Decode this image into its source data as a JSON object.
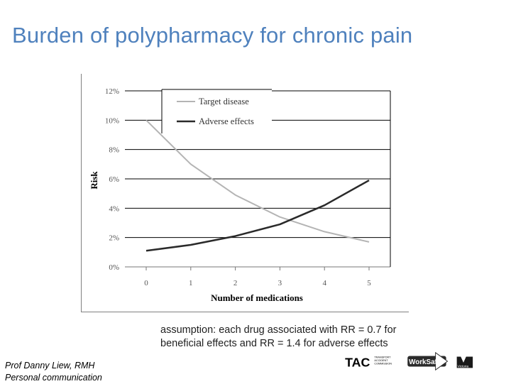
{
  "slide": {
    "title": "Burden of polypharmacy for chronic pain",
    "assumption_line1": "assumption: each drug associated with RR = 0.7 for",
    "assumption_line2": "beneficial effects and RR = 1.4 for adverse effects",
    "credit_line1": "Prof Danny Liew, RMH",
    "credit_line2": "Personal communication",
    "logos": {
      "tac": "TAC",
      "tac_sub1": "TRANSPORT",
      "tac_sub2": "ACCIDENT",
      "tac_sub3": "COMMISSION",
      "worksafe": "WorkSafe",
      "victoria": "Victoria"
    }
  },
  "colors": {
    "title": "#4f81bd",
    "target_disease": "#b4b4b4",
    "adverse_effects": "#2a2a2a",
    "gridline": "#000000"
  },
  "chart_data": {
    "type": "line",
    "title": "",
    "xlabel": "Number of medications",
    "ylabel": "Risk",
    "x": [
      0,
      1,
      2,
      3,
      4,
      5
    ],
    "x_tick_labels": [
      "0",
      "1",
      "2",
      "3",
      "4",
      "5"
    ],
    "y_tick_labels": [
      "0%",
      "2%",
      "4%",
      "6%",
      "8%",
      "10%",
      "12%"
    ],
    "y_ticks": [
      0,
      2,
      4,
      6,
      8,
      10,
      12
    ],
    "ylim": [
      0,
      12
    ],
    "y_unit": "%",
    "grid": "horizontal",
    "legend_position": "top-left",
    "series": [
      {
        "name": "Target disease",
        "values": [
          10.0,
          7.0,
          4.9,
          3.4,
          2.4,
          1.7
        ]
      },
      {
        "name": "Adverse effects",
        "values": [
          1.1,
          1.5,
          2.1,
          2.9,
          4.2,
          5.9
        ]
      }
    ]
  }
}
